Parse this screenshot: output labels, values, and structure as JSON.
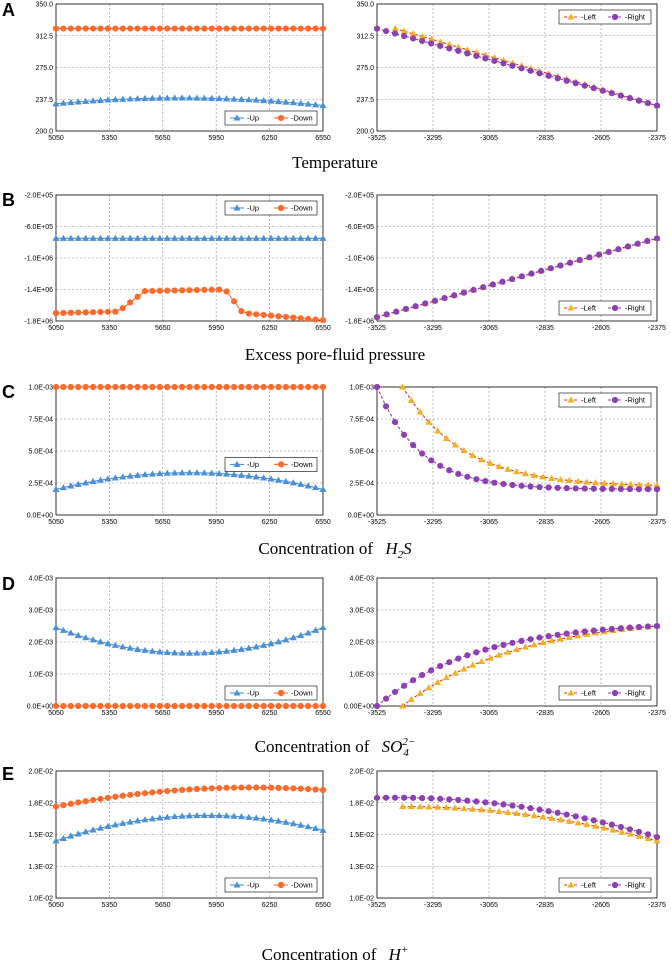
{
  "panels": [
    {
      "label": "A",
      "caption": "Temperature",
      "caption_prefix": "",
      "caption_math": "",
      "caption_sub": "",
      "caption_sup": ""
    },
    {
      "label": "B",
      "caption": "Excess pore-fluid pressure",
      "caption_prefix": "",
      "caption_math": "",
      "caption_sub": "",
      "caption_sup": ""
    },
    {
      "label": "C",
      "caption": "",
      "caption_prefix": "Concentration of",
      "caption_math": "H",
      "caption_sub": "2",
      "caption_sup": "",
      "caption_math2": "S"
    },
    {
      "label": "D",
      "caption": "",
      "caption_prefix": "Concentration of",
      "caption_math": "SO",
      "caption_sub": "4",
      "caption_sup": "2−",
      "caption_math2": ""
    },
    {
      "label": "E",
      "caption": "",
      "caption_prefix": "Concentration of",
      "caption_math": "H",
      "caption_sub": "",
      "caption_sup": "+",
      "caption_math2": ""
    }
  ],
  "colors": {
    "up": "#4a90d9",
    "down": "#ff6a2a",
    "left_line": "#e8321e",
    "left_marker": "#f4b01a",
    "right": "#8e3fb5",
    "grid": "#8c8c8c"
  },
  "chart_data": [
    {
      "id": "A-left",
      "type": "line",
      "x_ticks": [
        "5050",
        "5350",
        "5650",
        "5950",
        "6250",
        "6550"
      ],
      "y_ticks": [
        "200.0",
        "237.5",
        "275.0",
        "312.5",
        "350.0"
      ],
      "xlim": [
        5050,
        6550
      ],
      "ylim": [
        200,
        350
      ],
      "legend": [
        "Up",
        "Down"
      ],
      "legend_position": "bottom-right",
      "series": [
        {
          "name": "Up",
          "marker": "triangle",
          "x_range": [
            5050,
            6550
          ],
          "n": 37,
          "shape": "arch",
          "y_edge": 230,
          "y_mid": 239,
          "mid_x": 5750
        },
        {
          "name": "Down",
          "marker": "circle",
          "x_range": [
            5050,
            6550
          ],
          "n": 37,
          "shape": "flat",
          "y_edge": 321,
          "y_mid": 321,
          "mid_x": 5800
        }
      ]
    },
    {
      "id": "A-right",
      "type": "line",
      "x_ticks": [
        "-3525",
        "-3295",
        "-3065",
        "-2835",
        "-2605",
        "-2375"
      ],
      "y_ticks": [
        "200.0",
        "237.5",
        "275.0",
        "312.5",
        "350.0"
      ],
      "xlim": [
        -3525,
        -2375
      ],
      "ylim": [
        200,
        350
      ],
      "legend": [
        "Left",
        "Right"
      ],
      "legend_position": "top-right",
      "series": [
        {
          "name": "Left",
          "marker": "triangle",
          "x_range": [
            -3450,
            -2375
          ],
          "n": 30,
          "shape": "linear",
          "y_start": 321,
          "y_end": 230
        },
        {
          "name": "Right",
          "marker": "circle",
          "x_range": [
            -3525,
            -2375
          ],
          "n": 32,
          "shape": "linear",
          "y_start": 321,
          "y_end": 230
        }
      ]
    },
    {
      "id": "B-left",
      "type": "line",
      "x_ticks": [
        "5050",
        "5350",
        "5650",
        "5950",
        "6250",
        "6550"
      ],
      "y_ticks": [
        "-1.8E+06",
        "-1.4E+06",
        "-1.0E+06",
        "-6.0E+05",
        "-2.0E+05"
      ],
      "xlim": [
        5050,
        6550
      ],
      "ylim": [
        -1800000,
        -200000
      ],
      "legend": [
        "Up",
        "Down"
      ],
      "legend_position": "top-right",
      "series": [
        {
          "name": "Up",
          "marker": "triangle",
          "x_range": [
            5050,
            6550
          ],
          "n": 37,
          "shape": "flat",
          "y_edge": -750000,
          "y_mid": -750000,
          "mid_x": 5800
        },
        {
          "name": "Down",
          "marker": "circle",
          "x_range": [
            5050,
            6550
          ],
          "n": 37,
          "shape": "step",
          "points": [
            [
              5050,
              -1700000
            ],
            [
              5400,
              -1680000
            ],
            [
              5550,
              -1420000
            ],
            [
              6000,
              -1400000
            ],
            [
              6100,
              -1700000
            ],
            [
              6550,
              -1790000
            ]
          ]
        }
      ]
    },
    {
      "id": "B-right",
      "type": "line",
      "x_ticks": [
        "-3525",
        "-3295",
        "-3065",
        "-2835",
        "-2605",
        "-2375"
      ],
      "y_ticks": [
        "-1.8E+06",
        "-1.4E+06",
        "-1.0E+06",
        "-6.0E+05",
        "-2.0E+05"
      ],
      "xlim": [
        -3525,
        -2375
      ],
      "ylim": [
        -1800000,
        -200000
      ],
      "legend": [
        "Left",
        "Right"
      ],
      "legend_position": "bottom-right",
      "series": [
        {
          "name": "Left",
          "marker": "triangle",
          "x_range": [
            -3525,
            -2375
          ],
          "n": 30,
          "shape": "linear",
          "y_start": -1750000,
          "y_end": -750000
        },
        {
          "name": "Right",
          "marker": "circle",
          "x_range": [
            -3525,
            -2375
          ],
          "n": 30,
          "shape": "linear",
          "y_start": -1750000,
          "y_end": -750000
        }
      ]
    },
    {
      "id": "C-left",
      "type": "line",
      "x_ticks": [
        "5050",
        "5350",
        "5650",
        "5950",
        "6250",
        "6550"
      ],
      "y_ticks": [
        "0.0E+00",
        "2.5E-04",
        "5.0E-04",
        "7.5E-04",
        "1.0E-03"
      ],
      "xlim": [
        5050,
        6550
      ],
      "ylim": [
        0,
        0.001
      ],
      "legend": [
        "Up",
        "Down"
      ],
      "legend_position": "center-right",
      "series": [
        {
          "name": "Up",
          "marker": "triangle",
          "x_range": [
            5050,
            6550
          ],
          "n": 37,
          "shape": "arch",
          "y_edge": 0.0002,
          "y_mid": 0.00033,
          "mid_x": 5800
        },
        {
          "name": "Down",
          "marker": "circle",
          "x_range": [
            5050,
            6550
          ],
          "n": 37,
          "shape": "flat",
          "y_edge": 0.001,
          "y_mid": 0.001,
          "mid_x": 5800
        }
      ]
    },
    {
      "id": "C-right",
      "type": "line",
      "x_ticks": [
        "-3525",
        "-3295",
        "-3065",
        "-2835",
        "-2605",
        "-2375"
      ],
      "y_ticks": [
        "0.0E+00",
        "2.5E-04",
        "5.0E-04",
        "7.5E-04",
        "1.0E-03"
      ],
      "xlim": [
        -3525,
        -2375
      ],
      "ylim": [
        0,
        0.001
      ],
      "legend": [
        "Left",
        "Right"
      ],
      "legend_position": "top-right",
      "series": [
        {
          "name": "Left",
          "marker": "triangle",
          "x_range": [
            -3420,
            -2375
          ],
          "n": 30,
          "shape": "exp",
          "y_start": 0.001,
          "y_end": 0.00022,
          "k": 4.2
        },
        {
          "name": "Right",
          "marker": "circle",
          "x_range": [
            -3525,
            -2375
          ],
          "n": 32,
          "shape": "exp",
          "y_start": 0.001,
          "y_end": 0.0002,
          "k": 6.5
        }
      ]
    },
    {
      "id": "D-left",
      "type": "line",
      "x_ticks": [
        "5050",
        "5350",
        "5650",
        "5950",
        "6250",
        "6550"
      ],
      "y_ticks": [
        "0.0E+00",
        "1.0E-03",
        "2.0E-03",
        "3.0E-03",
        "4.0E-03"
      ],
      "xlim": [
        5050,
        6550
      ],
      "ylim": [
        0,
        0.004
      ],
      "legend": [
        "Up",
        "Down"
      ],
      "legend_position": "bottom-right",
      "series": [
        {
          "name": "Up",
          "marker": "triangle",
          "x_range": [
            5050,
            6550
          ],
          "n": 37,
          "shape": "arch",
          "y_edge": 0.00245,
          "y_mid": 0.00165,
          "mid_x": 5800
        },
        {
          "name": "Down",
          "marker": "circle",
          "x_range": [
            5050,
            6550
          ],
          "n": 37,
          "shape": "flat",
          "y_edge": 0,
          "y_mid": 0,
          "mid_x": 5800
        }
      ]
    },
    {
      "id": "D-right",
      "type": "line",
      "x_ticks": [
        "-3525",
        "-3295",
        "-3065",
        "-2835",
        "-2605",
        "-2375"
      ],
      "y_ticks": [
        "0.00E+00",
        "1.0E-03",
        "2.0E-03",
        "3.0E-03",
        "4.0E-03"
      ],
      "xlim": [
        -3525,
        -2375
      ],
      "ylim": [
        0,
        0.004
      ],
      "legend": [
        "Left",
        "Right"
      ],
      "legend_position": "bottom-right",
      "series": [
        {
          "name": "Left",
          "marker": "triangle",
          "x_range": [
            -3420,
            -2375
          ],
          "n": 30,
          "shape": "sat",
          "y_start": 0,
          "y_end": 0.0025,
          "k": 2.2
        },
        {
          "name": "Right",
          "marker": "circle",
          "x_range": [
            -3525,
            -2375
          ],
          "n": 32,
          "shape": "sat",
          "y_start": 0,
          "y_end": 0.0025,
          "k": 2.8
        }
      ]
    },
    {
      "id": "E-left",
      "type": "line",
      "x_ticks": [
        "5050",
        "5350",
        "5650",
        "5950",
        "6250",
        "6550"
      ],
      "y_ticks": [
        "1.0E-02",
        "1.3E-02",
        "1.5E-02",
        "1.8E-02",
        "2.0E-02"
      ],
      "xlim": [
        5050,
        6550
      ],
      "ylim": [
        0.01,
        0.02
      ],
      "legend": [
        "Up",
        "Down"
      ],
      "legend_position": "bottom-right",
      "series": [
        {
          "name": "Up",
          "marker": "triangle",
          "x_range": [
            5050,
            6550
          ],
          "n": 37,
          "shape": "arch",
          "y_edge": 0.0145,
          "y_mid": 0.0165,
          "mid_x": 5900
        },
        {
          "name": "Down",
          "marker": "circle",
          "x_range": [
            5050,
            6550
          ],
          "n": 37,
          "shape": "arch",
          "y_edge": 0.0172,
          "y_mid": 0.0187,
          "mid_x": 6150
        }
      ]
    },
    {
      "id": "E-right",
      "type": "line",
      "x_ticks": [
        "-3525",
        "-3295",
        "-3065",
        "-2835",
        "-2605",
        "-2375"
      ],
      "y_ticks": [
        "1.0E-02",
        "1.3E-02",
        "1.5E-02",
        "1.8E-02",
        "2.0E-02"
      ],
      "xlim": [
        -3525,
        -2375
      ],
      "ylim": [
        0.01,
        0.02
      ],
      "legend": [
        "Left",
        "Right"
      ],
      "legend_position": "bottom-right",
      "series": [
        {
          "name": "Left",
          "marker": "triangle",
          "x_range": [
            -3420,
            -2375
          ],
          "n": 30,
          "shape": "arch",
          "y_edge": 0.0145,
          "y_mid": 0.0172,
          "mid_x": -3420
        },
        {
          "name": "Right",
          "marker": "circle",
          "x_range": [
            -3525,
            -2375
          ],
          "n": 32,
          "shape": "arch",
          "y_edge": 0.0148,
          "y_mid": 0.0179,
          "mid_x": -3450
        }
      ]
    }
  ]
}
